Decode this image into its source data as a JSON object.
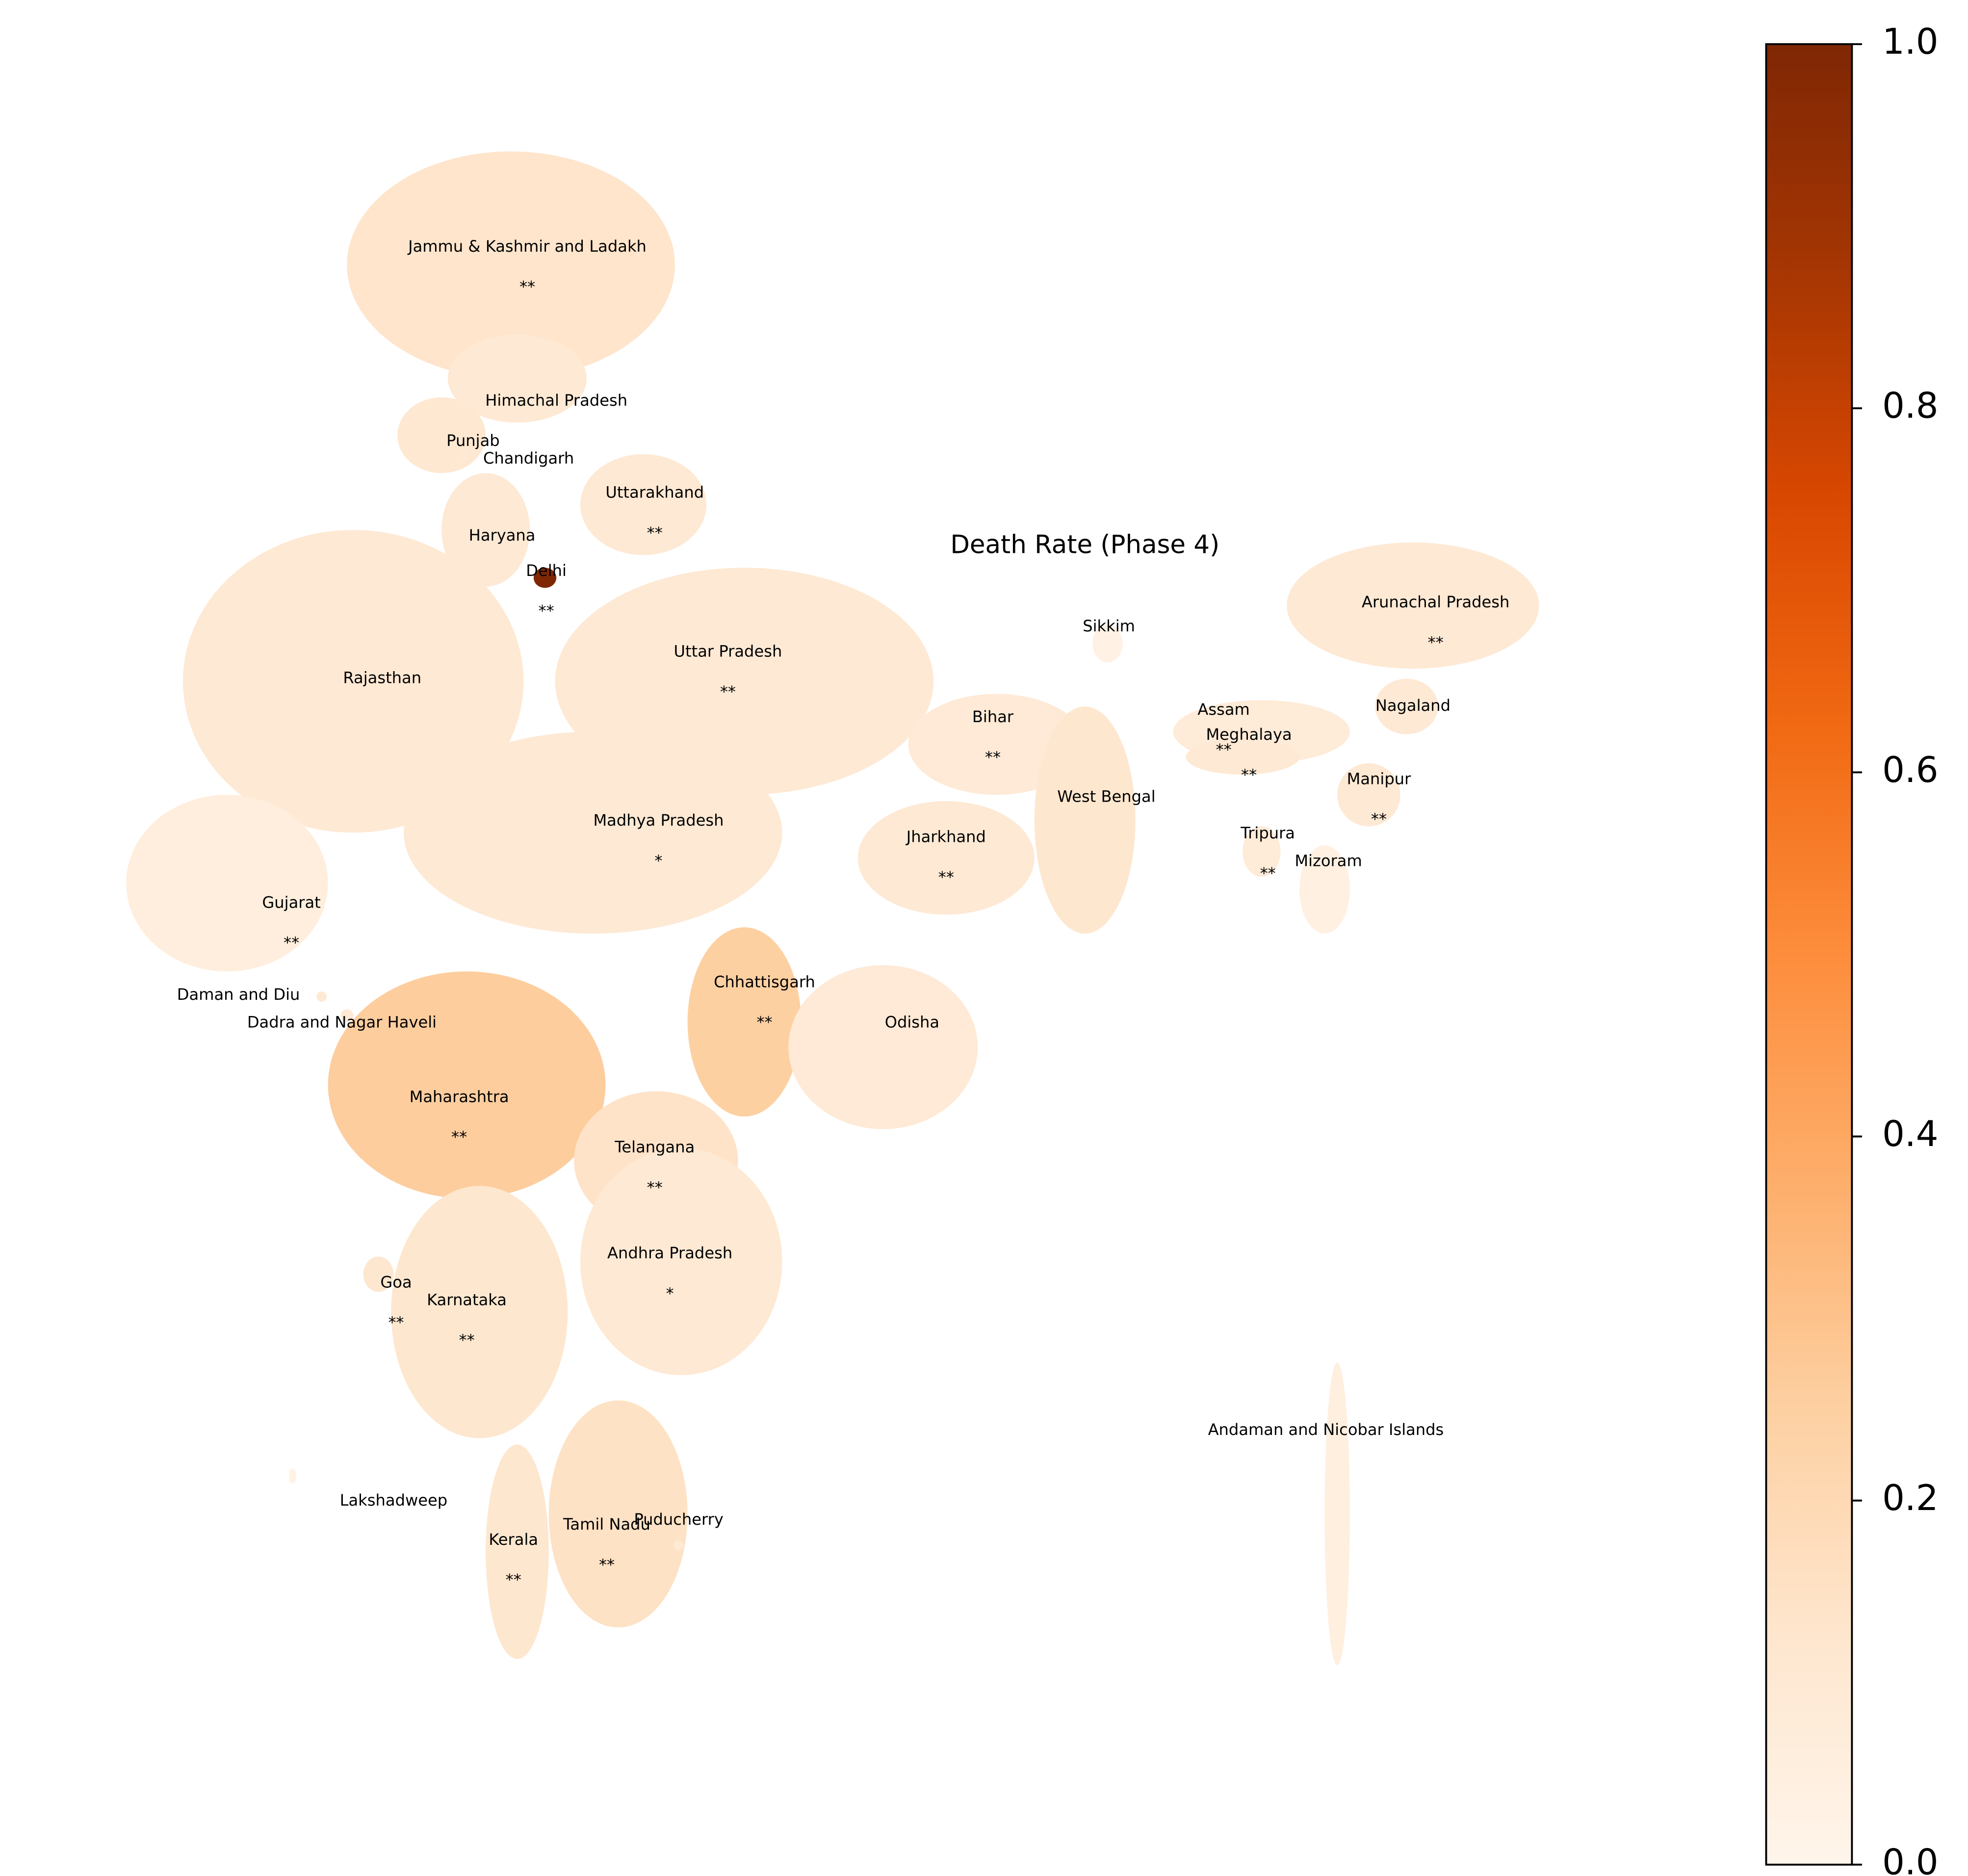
{
  "chart_data": {
    "type": "choropleth",
    "title": "Death Rate (Phase 4)",
    "states": [
      {
        "name": "Jammu & Kashmir and Ladakh",
        "value": 0.13,
        "annotation": "**"
      },
      {
        "name": "Himachal Pradesh",
        "value": 0.1
      },
      {
        "name": "Punjab",
        "value": 0.11
      },
      {
        "name": "Chandigarh",
        "value": 0.1
      },
      {
        "name": "Uttarakhand",
        "value": 0.1,
        "annotation": "**"
      },
      {
        "name": "Haryana",
        "value": 0.1
      },
      {
        "name": "Delhi",
        "value": 1.0,
        "annotation": "**"
      },
      {
        "name": "Rajasthan",
        "value": 0.1
      },
      {
        "name": "Uttar Pradesh",
        "value": 0.1,
        "annotation": "**"
      },
      {
        "name": "Bihar",
        "value": 0.09,
        "annotation": "**"
      },
      {
        "name": "Sikkim",
        "value": 0.03
      },
      {
        "name": "Arunachal Pradesh",
        "value": 0.1,
        "annotation": "**"
      },
      {
        "name": "Assam",
        "value": 0.08,
        "annotation": "**"
      },
      {
        "name": "Meghalaya",
        "value": 0.1,
        "annotation": "**"
      },
      {
        "name": "Nagaland",
        "value": 0.1
      },
      {
        "name": "Manipur",
        "value": 0.1,
        "annotation": "**"
      },
      {
        "name": "West Bengal",
        "value": 0.12
      },
      {
        "name": "Tripura",
        "value": 0.08,
        "annotation": "**"
      },
      {
        "name": "Mizoram",
        "value": 0.04
      },
      {
        "name": "Jharkhand",
        "value": 0.1,
        "annotation": "**"
      },
      {
        "name": "Madhya Pradesh",
        "value": 0.1,
        "annotation": "*"
      },
      {
        "name": "Gujarat",
        "value": 0.06,
        "annotation": "**"
      },
      {
        "name": "Daman and Diu",
        "value": 0.1
      },
      {
        "name": "Dadra and Nagar Haveli",
        "value": 0.1
      },
      {
        "name": "Chhattisgarh",
        "value": 0.25,
        "annotation": "**"
      },
      {
        "name": "Odisha",
        "value": 0.09
      },
      {
        "name": "Maharashtra",
        "value": 0.26,
        "annotation": "**"
      },
      {
        "name": "Telangana",
        "value": 0.14,
        "annotation": "**"
      },
      {
        "name": "Andhra Pradesh",
        "value": 0.1,
        "annotation": "*"
      },
      {
        "name": "Goa",
        "value": 0.12,
        "annotation": "**"
      },
      {
        "name": "Karnataka",
        "value": 0.12,
        "annotation": "**"
      },
      {
        "name": "Lakshadweep",
        "value": 0.02
      },
      {
        "name": "Kerala",
        "value": 0.12,
        "annotation": "**"
      },
      {
        "name": "Tamil Nadu",
        "value": 0.15,
        "annotation": "**"
      },
      {
        "name": "Puducherry",
        "value": 0.1
      },
      {
        "name": "Andaman and Nicobar Islands",
        "value": 0.05
      }
    ],
    "colorbar": {
      "lim": [
        0,
        1
      ],
      "colors": [
        "#fff5eb",
        "#fee6ce",
        "#fdd0a2",
        "#fdae6b",
        "#fd8d3c",
        "#f16913",
        "#d94801",
        "#a63603",
        "#7f2704"
      ],
      "ticks": [
        {
          "value": 0,
          "label": "0.0"
        },
        0.2,
        0.4,
        0.6,
        0.8,
        {
          "value": 1,
          "label": "1.0"
        }
      ]
    }
  }
}
